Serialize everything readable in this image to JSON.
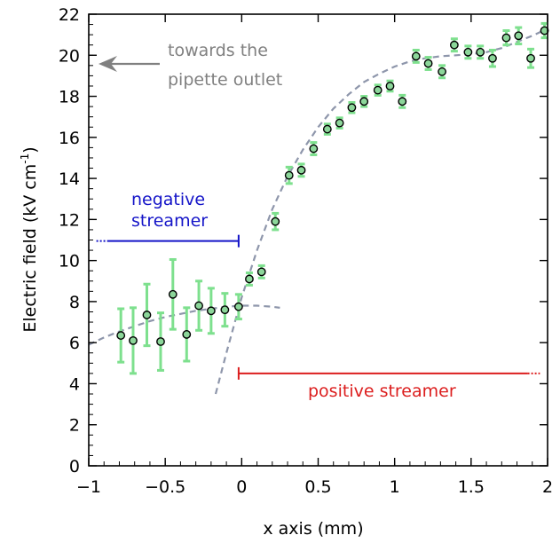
{
  "chart_data": {
    "type": "scatter",
    "xlabel": "x axis (mm)",
    "ylabel_main": "Electric field (kV cm",
    "ylabel_sup": "-1",
    "ylabel_close": ")",
    "xlim": [
      -1,
      2
    ],
    "ylim": [
      0,
      22
    ],
    "xticks": [
      -1,
      -0.5,
      0,
      0.5,
      1,
      1.5,
      2
    ],
    "xtick_labels": [
      "−1",
      "−0.5",
      "0",
      "0.5",
      "1",
      "1.5",
      "2"
    ],
    "yticks": [
      0,
      2,
      4,
      6,
      8,
      10,
      12,
      14,
      16,
      18,
      20,
      22
    ],
    "ytick_labels": [
      "0",
      "2",
      "4",
      "6",
      "8",
      "10",
      "12",
      "14",
      "16",
      "18",
      "20",
      "22"
    ],
    "grid": false,
    "points": [
      {
        "x": -0.79,
        "y": 6.35,
        "err": 1.3
      },
      {
        "x": -0.71,
        "y": 6.1,
        "err": 1.6
      },
      {
        "x": -0.62,
        "y": 7.35,
        "err": 1.5
      },
      {
        "x": -0.53,
        "y": 6.05,
        "err": 1.4
      },
      {
        "x": -0.45,
        "y": 8.35,
        "err": 1.7
      },
      {
        "x": -0.36,
        "y": 6.4,
        "err": 1.3
      },
      {
        "x": -0.28,
        "y": 7.8,
        "err": 1.2
      },
      {
        "x": -0.2,
        "y": 7.55,
        "err": 1.1
      },
      {
        "x": -0.11,
        "y": 7.6,
        "err": 0.8
      },
      {
        "x": -0.02,
        "y": 7.75,
        "err": 0.6
      },
      {
        "x": 0.05,
        "y": 9.1,
        "err": 0.3
      },
      {
        "x": 0.13,
        "y": 9.45,
        "err": 0.3
      },
      {
        "x": 0.22,
        "y": 11.9,
        "err": 0.4
      },
      {
        "x": 0.31,
        "y": 14.15,
        "err": 0.4
      },
      {
        "x": 0.39,
        "y": 14.4,
        "err": 0.3
      },
      {
        "x": 0.47,
        "y": 15.45,
        "err": 0.3
      },
      {
        "x": 0.56,
        "y": 16.4,
        "err": 0.25
      },
      {
        "x": 0.64,
        "y": 16.7,
        "err": 0.25
      },
      {
        "x": 0.72,
        "y": 17.45,
        "err": 0.25
      },
      {
        "x": 0.8,
        "y": 17.75,
        "err": 0.25
      },
      {
        "x": 0.89,
        "y": 18.3,
        "err": 0.25
      },
      {
        "x": 0.97,
        "y": 18.5,
        "err": 0.25
      },
      {
        "x": 1.05,
        "y": 17.75,
        "err": 0.3
      },
      {
        "x": 1.14,
        "y": 19.95,
        "err": 0.3
      },
      {
        "x": 1.22,
        "y": 19.6,
        "err": 0.3
      },
      {
        "x": 1.31,
        "y": 19.2,
        "err": 0.3
      },
      {
        "x": 1.39,
        "y": 20.5,
        "err": 0.3
      },
      {
        "x": 1.48,
        "y": 20.15,
        "err": 0.3
      },
      {
        "x": 1.56,
        "y": 20.15,
        "err": 0.3
      },
      {
        "x": 1.64,
        "y": 19.85,
        "err": 0.4
      },
      {
        "x": 1.73,
        "y": 20.85,
        "err": 0.35
      },
      {
        "x": 1.81,
        "y": 20.95,
        "err": 0.4
      },
      {
        "x": 1.89,
        "y": 19.85,
        "err": 0.45
      },
      {
        "x": 1.98,
        "y": 21.2,
        "err": 0.35
      }
    ],
    "fits": [
      {
        "x": [
          -1.0,
          -0.9,
          -0.8,
          -0.7,
          -0.6,
          -0.5,
          -0.4,
          -0.3,
          -0.2,
          -0.1,
          0.0,
          0.1,
          0.2,
          0.25
        ],
        "y": [
          5.9,
          6.25,
          6.55,
          6.8,
          7.05,
          7.25,
          7.4,
          7.55,
          7.65,
          7.75,
          7.8,
          7.8,
          7.75,
          7.7
        ]
      },
      {
        "x": [
          -0.17,
          -0.1,
          0.0,
          0.1,
          0.2,
          0.3,
          0.4,
          0.5,
          0.6,
          0.7,
          0.8,
          0.9,
          1.0,
          1.1,
          1.2,
          1.3,
          1.4,
          1.5,
          1.6,
          1.7,
          1.8,
          1.9,
          2.0
        ],
        "y": [
          3.5,
          5.5,
          8.2,
          10.5,
          12.5,
          14.1,
          15.4,
          16.5,
          17.4,
          18.1,
          18.7,
          19.1,
          19.45,
          19.7,
          19.85,
          19.95,
          20.0,
          20.05,
          20.15,
          20.35,
          20.65,
          20.95,
          21.3
        ]
      }
    ],
    "annotations": {
      "pipette": {
        "line1": "towards the",
        "line2": "pipette outlet",
        "color": "#808080"
      },
      "negative": {
        "line1": "negative",
        "line2": "streamer",
        "color": "#1414c8",
        "y": 10.95,
        "x_dot_start": -0.95,
        "x_solid_start": -0.88,
        "x_end": -0.02
      },
      "positive": {
        "label": "positive streamer",
        "color": "#dc1e1e",
        "y": 4.5,
        "x_start": -0.02,
        "x_solid_end": 1.87,
        "x_dot_end": 1.95
      }
    },
    "colors": {
      "errorbar": "#7ee08e",
      "point_fill": "#8cd69a",
      "point_edge": "#000000",
      "fit": "#8e96ab"
    }
  }
}
